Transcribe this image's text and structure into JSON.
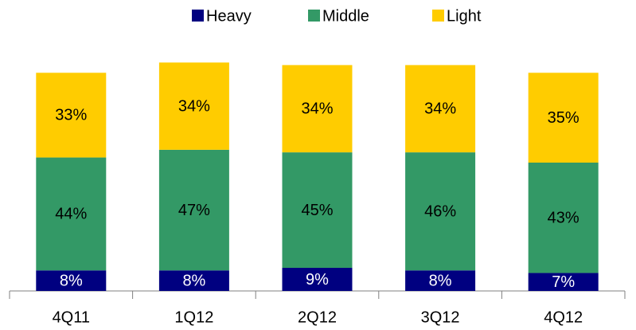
{
  "chart_data": {
    "type": "stacked_bar",
    "categories": [
      "4Q11",
      "1Q12",
      "2Q12",
      "3Q12",
      "4Q12"
    ],
    "series": [
      {
        "name": "Heavy",
        "color": "#000080",
        "values": [
          8,
          8,
          9,
          8,
          7
        ],
        "value_labels": [
          "8%",
          "8%",
          "9%",
          "8%",
          "7%"
        ]
      },
      {
        "name": "Middle",
        "color": "#339966",
        "values": [
          44,
          47,
          45,
          46,
          43
        ],
        "value_labels": [
          "44%",
          "47%",
          "45%",
          "46%",
          "43%"
        ]
      },
      {
        "name": "Light",
        "color": "#FFCC00",
        "values": [
          33,
          34,
          34,
          34,
          35
        ],
        "value_labels": [
          "33%",
          "34%",
          "34%",
          "34%",
          "35%"
        ]
      }
    ],
    "legend": "top"
  }
}
